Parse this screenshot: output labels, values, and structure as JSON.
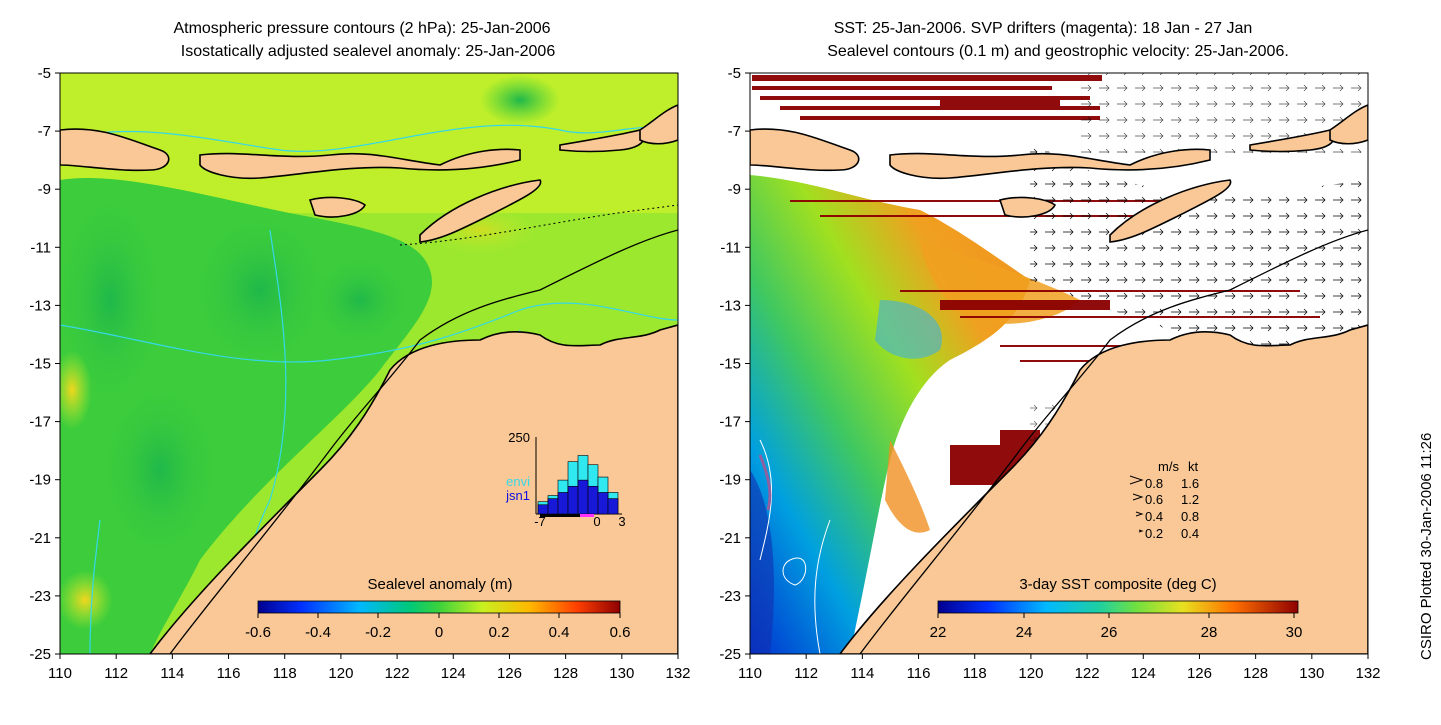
{
  "left_panel": {
    "title_line1": "Atmospheric pressure contours (2 hPa): 25-Jan-2006",
    "title_line2": "Isostatically adjusted sealevel anomaly: 25-Jan-2006",
    "x_ticks": [
      "110",
      "112",
      "114",
      "116",
      "118",
      "120",
      "122",
      "124",
      "126",
      "128",
      "130",
      "132"
    ],
    "y_ticks": [
      "-5",
      "-7",
      "-9",
      "-11",
      "-13",
      "-15",
      "-17",
      "-19",
      "-21",
      "-23",
      "-25"
    ],
    "colorbar_title": "Sealevel anomaly (m)",
    "colorbar_ticks": [
      "-0.6",
      "-0.4",
      "-0.2",
      "0",
      "0.2",
      "0.4",
      "0.6"
    ],
    "histogram": {
      "ymax_label": "250",
      "legend": [
        "envi",
        "jsn1"
      ],
      "x_labels": [
        "-7",
        "0",
        "3"
      ],
      "envi_values": [
        40,
        60,
        110,
        170,
        190,
        160,
        120,
        70
      ],
      "jsn1_values": [
        30,
        50,
        70,
        90,
        110,
        90,
        70,
        50
      ]
    }
  },
  "right_panel": {
    "title_line1": "SST: 25-Jan-2006. SVP drifters (magenta): 18 Jan - 27 Jan",
    "title_line2": "Sealevel contours (0.1 m) and geostrophic velocity: 25-Jan-2006.",
    "x_ticks": [
      "110",
      "112",
      "114",
      "116",
      "118",
      "120",
      "122",
      "124",
      "126",
      "128",
      "130",
      "132"
    ],
    "y_ticks": [
      "-5",
      "-7",
      "-9",
      "-11",
      "-13",
      "-15",
      "-17",
      "-19",
      "-21",
      "-23",
      "-25"
    ],
    "colorbar_title": "3-day SST composite (deg C)",
    "colorbar_ticks": [
      "22",
      "24",
      "26",
      "28",
      "30"
    ],
    "velocity_legend": {
      "header_ms": "m/s",
      "header_kt": "kt",
      "rows": [
        {
          "ms": "0.8",
          "kt": "1.6"
        },
        {
          "ms": "0.6",
          "kt": "1.2"
        },
        {
          "ms": "0.4",
          "kt": "0.8"
        },
        {
          "ms": "0.2",
          "kt": "0.4"
        }
      ]
    }
  },
  "credit": "CSIRO Plotted 30-Jan-2006 11:26",
  "colors": {
    "land": "#f9c896",
    "ocean_green": "#3ccc3c",
    "ocean_yellowgreen": "#a6ee2a",
    "contour_cyan": "#36d8e8",
    "sst_missing": "#ffffff",
    "drifter_track": "#8b0000"
  }
}
